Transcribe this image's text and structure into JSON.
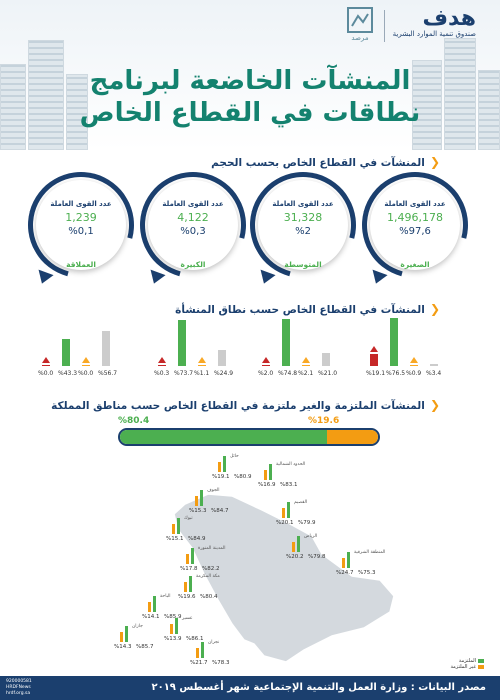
{
  "header": {
    "title_line1": "المنشآت الخاضعة لبرنامج",
    "title_line2": "نطاقات في القطاع الخاص",
    "hrdf_logo_text": "هدف",
    "hrdf_logo_sub": "صندوق تنمية الموارد البشرية",
    "marsad_logo": "مرصد"
  },
  "section1": {
    "title": "المنشآت في القطاع الخاص بحسب الحجم",
    "circles": [
      {
        "label": "عدد القوى العاملة",
        "count": "1,496,178",
        "pct": "%97,6",
        "name": "الصغيرة"
      },
      {
        "label": "عدد القوى العاملة",
        "count": "31,328",
        "pct": "%2",
        "name": "المتوسطة"
      },
      {
        "label": "عدد القوى العاملة",
        "count": "4,122",
        "pct": "%0,3",
        "name": "الكبيرة"
      },
      {
        "label": "عدد القوى العاملة",
        "count": "1,239",
        "pct": "%0,1",
        "name": "العملاقة"
      }
    ]
  },
  "section2": {
    "title": "المنشآت في القطاع الخاص حسب نطاق المنشأة",
    "groups": [
      {
        "values": [
          19.1,
          76.5,
          0.9,
          3.4
        ],
        "labels": [
          "%19.1",
          "%76.5",
          "%0.9",
          "%3.4"
        ]
      },
      {
        "values": [
          2.0,
          74.8,
          2.1,
          21.0
        ],
        "labels": [
          "%2.0",
          "%74.8",
          "%2.1",
          "%21.0"
        ]
      },
      {
        "values": [
          0.3,
          73.7,
          1.1,
          24.9
        ],
        "labels": [
          "%0.3",
          "%73.7",
          "%1.1",
          "%24.9"
        ]
      },
      {
        "values": [
          0.0,
          43.3,
          0.0,
          56.7
        ],
        "labels": [
          "%0.0",
          "%43.3",
          "%0.0",
          "%56.7"
        ]
      }
    ],
    "colors": [
      "#c62828",
      "#4caf50",
      "#f9a825",
      "#cccccc"
    ]
  },
  "section3": {
    "title": "المنشآت الملتزمة والغير ملتزمة في القطاع الخاص حسب مناطق المملكة",
    "compliant_pct": 80.4,
    "noncompliant_pct": 19.6,
    "compliant_label": "%80.4",
    "noncompliant_label": "%19.6"
  },
  "regions": [
    {
      "name": "حائل",
      "green": "%80.9",
      "orange": "%19.1"
    },
    {
      "name": "الحدود الشمالية",
      "green": "%83.1",
      "orange": "%16.9"
    },
    {
      "name": "الجوف",
      "green": "%84.7",
      "orange": "%15.3"
    },
    {
      "name": "القصيم",
      "green": "%79.9",
      "orange": "%20.1"
    },
    {
      "name": "تبوك",
      "green": "%84.9",
      "orange": "%15.1"
    },
    {
      "name": "الرياض",
      "green": "%79.8",
      "orange": "%20.2"
    },
    {
      "name": "المدينة المنورة",
      "green": "%82.2",
      "orange": "%17.8"
    },
    {
      "name": "المنطقة الشرقية",
      "green": "%75.3",
      "orange": "%24.7"
    },
    {
      "name": "مكة المكرمة",
      "green": "%80.4",
      "orange": "%19.6"
    },
    {
      "name": "الباحة",
      "green": "%85.9",
      "orange": "%14.1"
    },
    {
      "name": "عسير",
      "green": "%86.1",
      "orange": "%13.9"
    },
    {
      "name": "جازان",
      "green": "%85.7",
      "orange": "%14.3"
    },
    {
      "name": "نجران",
      "green": "%78.3",
      "orange": "%21.7"
    }
  ],
  "legend": {
    "compliant": "الملتزمة",
    "noncompliant": "غير الملتزمة"
  },
  "footer": {
    "source": "مصدر البيانات : وزارة العمل والتنمية الإجتماعية شهر أغسطس ٢٠١٩",
    "phone": "920000581",
    "handle": "HRDFNews",
    "site": "hrdf.org.sa"
  },
  "colors": {
    "navy": "#1b3f6e",
    "green": "#4caf50",
    "orange": "#f39c12",
    "title": "#14826f"
  }
}
